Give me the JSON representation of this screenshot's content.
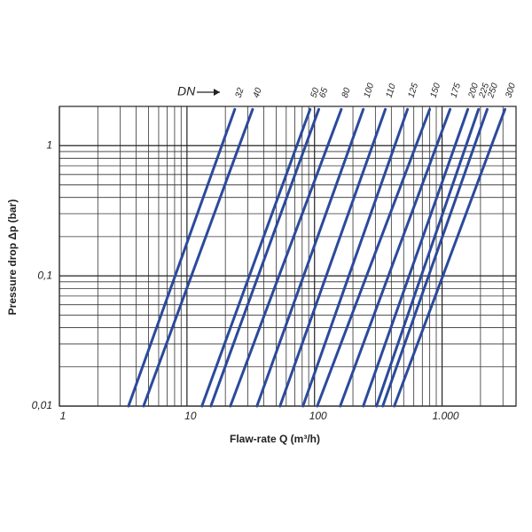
{
  "chart_data": {
    "type": "line",
    "xlabel": "Flaw-rate Q   (m³/h)",
    "ylabel": "Pressure drop   Δp (bar)",
    "series_label_title": "DN",
    "xscale": "log",
    "yscale": "log",
    "grid": true,
    "xlim": [
      1,
      3800
    ],
    "ylim": [
      0.01,
      2.0
    ],
    "xticks": [
      1,
      10,
      100,
      {
        "value": 1000,
        "label": "1.000"
      }
    ],
    "yticks": [
      {
        "value": 0.01,
        "label": "0,01"
      },
      {
        "value": 0.1,
        "label": "0,1"
      },
      1
    ],
    "x_minor_ticks": [
      2,
      3,
      4,
      5,
      6,
      7,
      8,
      9,
      20,
      30,
      40,
      50,
      60,
      70,
      80,
      90,
      200,
      300,
      400,
      500,
      600,
      700,
      800,
      900,
      2000,
      3000
    ],
    "y_minor_ticks": [
      0.02,
      0.03,
      0.04,
      0.05,
      0.06,
      0.07,
      0.08,
      0.09,
      0.2,
      0.3,
      0.4,
      0.5,
      0.6,
      0.7,
      0.8,
      0.9
    ],
    "series": [
      {
        "name": "32",
        "color": "#2b4a9c",
        "x": [
          3.48,
          23.7
        ],
        "values": [
          0.01,
          1.9
        ]
      },
      {
        "name": "40",
        "color": "#2b4a9c",
        "x": [
          4.57,
          32.7
        ],
        "values": [
          0.01,
          1.9
        ]
      },
      {
        "name": "50",
        "color": "#2b4a9c",
        "x": [
          13.1,
          92.3
        ],
        "values": [
          0.01,
          1.9
        ]
      },
      {
        "name": "65",
        "color": "#2b4a9c",
        "x": [
          15.4,
          108
        ],
        "values": [
          0.01,
          1.9
        ]
      },
      {
        "name": "80",
        "color": "#2b4a9c",
        "x": [
          21.9,
          162
        ],
        "values": [
          0.01,
          1.9
        ]
      },
      {
        "name": "100",
        "color": "#2b4a9c",
        "x": [
          35.4,
          241
        ],
        "values": [
          0.01,
          1.9
        ]
      },
      {
        "name": "110",
        "color": "#2b4a9c",
        "x": [
          53.6,
          359
        ],
        "values": [
          0.01,
          1.9
        ]
      },
      {
        "name": "125",
        "color": "#2b4a9c",
        "x": [
          81.2,
          536
        ],
        "values": [
          0.01,
          1.9
        ]
      },
      {
        "name": "150",
        "color": "#2b4a9c",
        "x": [
          105,
          800
        ],
        "values": [
          0.01,
          1.9
        ]
      },
      {
        "name": "175",
        "color": "#2b4a9c",
        "x": [
          159,
          1155
        ],
        "values": [
          0.01,
          1.9
        ]
      },
      {
        "name": "200",
        "color": "#2b4a9c",
        "x": [
          241,
          1590
        ],
        "values": [
          0.01,
          1.9
        ]
      },
      {
        "name": "225",
        "color": "#2b4a9c",
        "x": [
          306,
          1930
        ],
        "values": [
          0.01,
          1.9
        ]
      },
      {
        "name": "250",
        "color": "#2b4a9c",
        "x": [
          343,
          2260
        ],
        "values": [
          0.01,
          1.9
        ]
      },
      {
        "name": "300",
        "color": "#2b4a9c",
        "x": [
          422,
          3110
        ],
        "values": [
          0.01,
          1.9
        ]
      }
    ]
  }
}
